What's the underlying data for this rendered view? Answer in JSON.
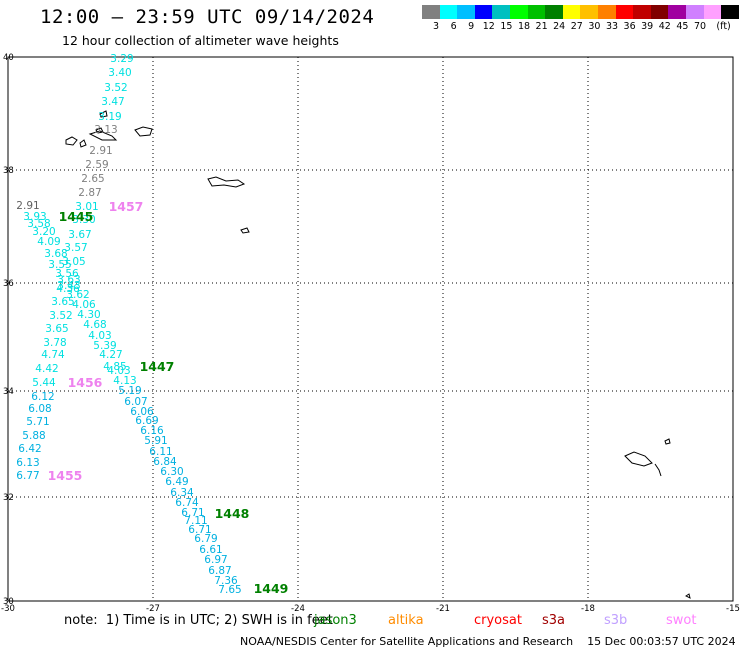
{
  "title": "12:00 – 23:59 UTC 09/14/2024",
  "subtitle": "12 hour collection of altimeter wave heights",
  "legend": {
    "unit": "(ft)",
    "colors": [
      "#808080",
      "#00ffff",
      "#00bfff",
      "#0000ff",
      "#00c0c0",
      "#00ff00",
      "#00c000",
      "#008000",
      "#ffff00",
      "#ffc000",
      "#ff8000",
      "#ff0000",
      "#c00000",
      "#800000",
      "#a000a0",
      "#d080ff",
      "#ffa0ff",
      "#000000"
    ],
    "labels": [
      "3",
      "6",
      "9",
      "12",
      "15",
      "18",
      "21",
      "24",
      "27",
      "30",
      "33",
      "36",
      "39",
      "42",
      "45",
      "70"
    ]
  },
  "axes": {
    "lon_labels": [
      "-30",
      "-27",
      "-24",
      "-21",
      "-18",
      "-15"
    ],
    "lat_labels": [
      "40",
      "38",
      "36",
      "34",
      "32",
      "30"
    ]
  },
  "observations": [
    {
      "v": "3.29",
      "c": "#00e0e0"
    },
    {
      "v": "3.40",
      "c": "#00e0e0"
    },
    {
      "v": "3.52",
      "c": "#00e0e0"
    },
    {
      "v": "3.47",
      "c": "#00e0e0"
    },
    {
      "v": "3.19",
      "c": "#00e0e0"
    },
    {
      "v": "3.13",
      "c": "#808080"
    },
    {
      "v": "2.91",
      "c": "#808080"
    },
    {
      "v": "2.59",
      "c": "#808080"
    },
    {
      "v": "2.65",
      "c": "#808080"
    },
    {
      "v": "2.87",
      "c": "#808080"
    },
    {
      "v": "3.01",
      "c": "#00e0e0"
    },
    {
      "v": "3.30",
      "c": "#00e0e0"
    },
    {
      "v": "2.91",
      "c": "#606060"
    },
    {
      "v": "3.93",
      "c": "#00e0e0"
    },
    {
      "v": "3.58",
      "c": "#00e0e0"
    },
    {
      "v": "3.67",
      "c": "#00e0e0"
    },
    {
      "v": "3.20",
      "c": "#00e0e0"
    },
    {
      "v": "4.09",
      "c": "#00e0e0"
    },
    {
      "v": "3.57",
      "c": "#00e0e0"
    },
    {
      "v": "3.68",
      "c": "#00e0e0"
    },
    {
      "v": "3.05",
      "c": "#00e0e0"
    },
    {
      "v": "3.55",
      "c": "#00e0e0"
    },
    {
      "v": "3.56",
      "c": "#00e0e0"
    },
    {
      "v": "3.63",
      "c": "#00e0e0"
    },
    {
      "v": "3.43",
      "c": "#00e0e0"
    },
    {
      "v": "4.36",
      "c": "#00e0e0"
    },
    {
      "v": "3.62",
      "c": "#00e0e0"
    },
    {
      "v": "3.65",
      "c": "#00e0e0"
    },
    {
      "v": "4.06",
      "c": "#00e0e0"
    },
    {
      "v": "3.52",
      "c": "#00e0e0"
    },
    {
      "v": "4.30",
      "c": "#00e0e0"
    },
    {
      "v": "4.68",
      "c": "#00e0e0"
    },
    {
      "v": "3.65",
      "c": "#00e0e0"
    },
    {
      "v": "4.03",
      "c": "#00e0e0"
    },
    {
      "v": "3.78",
      "c": "#00e0e0"
    },
    {
      "v": "5.39",
      "c": "#00e0e0"
    },
    {
      "v": "4.74",
      "c": "#00e0e0"
    },
    {
      "v": "4.27",
      "c": "#00e0e0"
    },
    {
      "v": "4.85",
      "c": "#00e0e0"
    },
    {
      "v": "4.42",
      "c": "#00e0e0"
    },
    {
      "v": "4.03",
      "c": "#00e0e0"
    },
    {
      "v": "5.44",
      "c": "#00e0e0"
    },
    {
      "v": "4.13",
      "c": "#00e0e0"
    },
    {
      "v": "5.19",
      "c": "#00b0e0"
    },
    {
      "v": "6.12",
      "c": "#00b0e0"
    },
    {
      "v": "6.07",
      "c": "#00b0e0"
    },
    {
      "v": "6.08",
      "c": "#00b0e0"
    },
    {
      "v": "6.06",
      "c": "#00b0e0"
    },
    {
      "v": "6.69",
      "c": "#00b0e0"
    },
    {
      "v": "5.71",
      "c": "#00b0e0"
    },
    {
      "v": "6.16",
      "c": "#00b0e0"
    },
    {
      "v": "5.88",
      "c": "#00b0e0"
    },
    {
      "v": "5.91",
      "c": "#00b0e0"
    },
    {
      "v": "6.11",
      "c": "#00b0e0"
    },
    {
      "v": "6.42",
      "c": "#00b0e0"
    },
    {
      "v": "6.84",
      "c": "#00b0e0"
    },
    {
      "v": "6.13",
      "c": "#00b0e0"
    },
    {
      "v": "6.77",
      "c": "#00b0e0"
    },
    {
      "v": "6.30",
      "c": "#00b0e0"
    },
    {
      "v": "6.49",
      "c": "#00b0e0"
    },
    {
      "v": "6.34",
      "c": "#00b0e0"
    },
    {
      "v": "6.74",
      "c": "#00b0e0"
    },
    {
      "v": "6.71",
      "c": "#00b0e0"
    },
    {
      "v": "7.11",
      "c": "#00b0e0"
    },
    {
      "v": "6.71",
      "c": "#00b0e0"
    },
    {
      "v": "6.79",
      "c": "#00b0e0"
    },
    {
      "v": "6.61",
      "c": "#00b0e0"
    },
    {
      "v": "6.97",
      "c": "#00b0e0"
    },
    {
      "v": "6.87",
      "c": "#00b0e0"
    },
    {
      "v": "7.36",
      "c": "#00b0e0"
    },
    {
      "v": "7.65",
      "c": "#00b0e0"
    }
  ],
  "time_labels": [
    {
      "t": "1445",
      "c": "#008000"
    },
    {
      "t": "1457",
      "c": "#ee82ee"
    },
    {
      "t": "1447",
      "c": "#008000"
    },
    {
      "t": "1456",
      "c": "#ee82ee"
    },
    {
      "t": "1455",
      "c": "#ee82ee"
    },
    {
      "t": "1448",
      "c": "#008000"
    },
    {
      "t": "1449",
      "c": "#008000"
    }
  ],
  "note": "note:  1) Time is in UTC; 2) SWH is in feet",
  "satellites": [
    {
      "name": "jason3",
      "color": "#008000"
    },
    {
      "name": "altika",
      "color": "#ff8c00"
    },
    {
      "name": "cryosat",
      "color": "#ff0000"
    },
    {
      "name": "s3a",
      "color": "#a00000"
    },
    {
      "name": "s3b",
      "color": "#c0a0ff"
    },
    {
      "name": "swot",
      "color": "#ff80ff"
    }
  ],
  "footer": "NOAA/NESDIS Center for Satellite Applications and Research    15 Dec 00:03:57 UTC 2024"
}
